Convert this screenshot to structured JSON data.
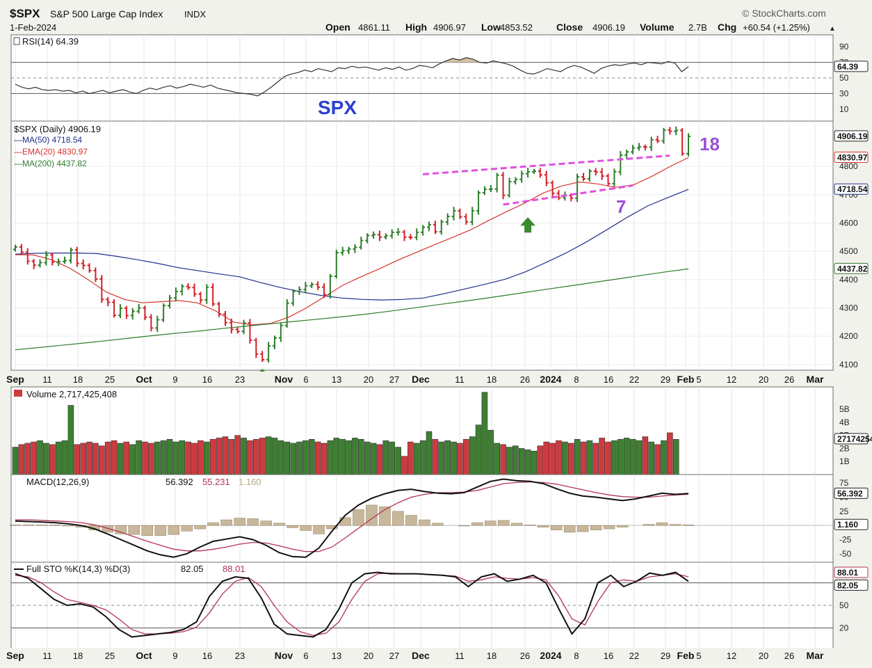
{
  "header": {
    "symbol": "$SPX",
    "name": "S&P 500 Large Cap Index",
    "exchange": "INDX",
    "brand": "StockCharts.com",
    "date": "1-Feb-2024",
    "quote_labels": [
      "Open",
      "High",
      "Low",
      "Close",
      "Volume",
      "Chg"
    ],
    "quote_values": [
      "4861.11",
      "4906.97",
      "4853.52",
      "4906.19",
      "2.7B",
      "+60.54 (+1.25%)"
    ],
    "up_arrow": "▲"
  },
  "colors": {
    "up": "#2f7d2c",
    "down": "#d42026",
    "ma50": "#1f2f8c",
    "ema20": "#d6332e",
    "ma200": "#2e7a2a",
    "annotation": "#e04fe0",
    "spx_label": "#2b3fd3",
    "count_label": "#9a4fd8",
    "arrow": "#3a8a2e",
    "hist": "#c8b79a",
    "rsi_fill": "#d2c1a4"
  },
  "annotations": {
    "spx": "SPX",
    "count_top": "18",
    "count_bottom": "7"
  },
  "chart_data": [
    {
      "panel": "rsi",
      "type": "line",
      "title": "RSI(14) 64.39",
      "current_value": "64.39",
      "ylim": [
        0,
        100
      ],
      "y_ticks": [
        "90",
        "70",
        "50",
        "30",
        "10"
      ],
      "reference_lines": [
        70,
        50,
        30
      ],
      "values": [
        42,
        38,
        36,
        38,
        35,
        34,
        35,
        33,
        34,
        31,
        33,
        30,
        32,
        34,
        31,
        33,
        35,
        32,
        30,
        34,
        37,
        35,
        38,
        40,
        37,
        39,
        42,
        40,
        38,
        41,
        37,
        35,
        33,
        31,
        30,
        29,
        27,
        32,
        38,
        45,
        52,
        55,
        57,
        60,
        58,
        62,
        60,
        58,
        63,
        62,
        65,
        63,
        64,
        62,
        60,
        63,
        61,
        64,
        60,
        62,
        66,
        65,
        63,
        68,
        72,
        75,
        73,
        76,
        74,
        70,
        69,
        72,
        70,
        68,
        65,
        60,
        56,
        55,
        58,
        62,
        60,
        58,
        63,
        66,
        64,
        60,
        56,
        62,
        65,
        67,
        66,
        68,
        69,
        67,
        70,
        69,
        68,
        71,
        69,
        58,
        64.39
      ]
    },
    {
      "panel": "price",
      "type": "candlestick",
      "title": "$SPX (Daily) 4906.19",
      "ylim": [
        4080,
        4960
      ],
      "y_ticks": [
        4100,
        4200,
        4300,
        4400,
        4500,
        4600,
        4700,
        4800
      ],
      "x_ticks": [
        "Sep",
        "11",
        "18",
        "25",
        "Oct",
        "9",
        "16",
        "23",
        "Nov",
        "6",
        "13",
        "20",
        "27",
        "Dec",
        "11",
        "18",
        "26",
        "2024",
        "8",
        "16",
        "22",
        "29",
        "Feb",
        "5",
        "12",
        "20",
        "26",
        "Mar"
      ],
      "closes": [
        4515,
        4497,
        4465,
        4451,
        4460,
        4487,
        4462,
        4464,
        4467,
        4505,
        4457,
        4450,
        4432,
        4402,
        4330,
        4320,
        4274,
        4299,
        4273,
        4288,
        4300,
        4267,
        4229,
        4258,
        4308,
        4335,
        4358,
        4376,
        4372,
        4349,
        4328,
        4373,
        4314,
        4278,
        4248,
        4224,
        4217,
        4247,
        4186,
        4137,
        4117,
        4166,
        4194,
        4238,
        4317,
        4358,
        4365,
        4378,
        4383,
        4373,
        4347,
        4412,
        4495,
        4502,
        4508,
        4514,
        4538,
        4556,
        4559,
        4550,
        4555,
        4567,
        4568,
        4550,
        4549,
        4567,
        4585,
        4594,
        4569,
        4604,
        4623,
        4643,
        4622,
        4604,
        4643,
        4707,
        4719,
        4720,
        4769,
        4698,
        4746,
        4754,
        4774,
        4781,
        4783,
        4770,
        4742,
        4705,
        4689,
        4697,
        4688,
        4763,
        4756,
        4783,
        4780,
        4766,
        4739,
        4781,
        4840,
        4851,
        4865,
        4869,
        4868,
        4894,
        4890,
        4928,
        4924,
        4927,
        4845,
        4906.19
      ],
      "series": [
        {
          "name": "MA(50)",
          "current": "4718.54",
          "values": [
            4490,
            4493,
            4494,
            4494,
            4492,
            4482,
            4470,
            4457,
            4442,
            4431,
            4420,
            4410,
            4390,
            4372,
            4357,
            4344,
            4335,
            4330,
            4328,
            4330,
            4335,
            4350,
            4366,
            4383,
            4401,
            4427,
            4460,
            4494,
            4533,
            4576,
            4620,
            4660,
            4690,
            4718.54
          ]
        },
        {
          "name": "EMA(20)",
          "current": "4830.97",
          "values": [
            4488,
            4487,
            4470,
            4440,
            4400,
            4356,
            4330,
            4318,
            4322,
            4326,
            4318,
            4290,
            4250,
            4240,
            4245,
            4266,
            4300,
            4340,
            4380,
            4410,
            4438,
            4468,
            4495,
            4522,
            4548,
            4575,
            4608,
            4640,
            4670,
            4705,
            4730,
            4745,
            4738,
            4726,
            4735,
            4765,
            4800,
            4830.97
          ]
        },
        {
          "name": "MA(200)",
          "current": "4437.82",
          "values": [
            4152,
            4160,
            4168,
            4176,
            4185,
            4194,
            4203,
            4211,
            4219,
            4228,
            4236,
            4244,
            4252,
            4260,
            4268,
            4277,
            4287,
            4298,
            4309,
            4320,
            4331,
            4343,
            4355,
            4367,
            4379,
            4391,
            4403,
            4415,
            4427,
            4437.82
          ]
        }
      ],
      "annotations": [
        {
          "type": "trendline",
          "from": [
            66,
            4772
          ],
          "to": [
            106,
            4838
          ]
        },
        {
          "type": "trendline",
          "from": [
            79,
            4665
          ],
          "to": [
            100,
            4732
          ]
        },
        {
          "type": "arrow-up",
          "x": 40,
          "y": 4090
        },
        {
          "type": "arrow-up",
          "x": 83,
          "y": 4625
        }
      ]
    },
    {
      "panel": "volume",
      "type": "bar",
      "title": "Volume 2,717,425,408",
      "current_value": "2717425408",
      "y_ticks": [
        "5B",
        "4B",
        "3B",
        "2B",
        "1B"
      ],
      "ylim": [
        0,
        6
      ],
      "values": [
        2.1,
        2.3,
        2.4,
        2.5,
        2.6,
        2.4,
        2.3,
        2.5,
        2.6,
        5.3,
        2.3,
        2.4,
        2.5,
        2.4,
        2.2,
        2.5,
        2.6,
        2.4,
        2.5,
        2.3,
        2.6,
        2.5,
        2.4,
        2.5,
        2.6,
        2.7,
        2.5,
        2.6,
        2.5,
        2.4,
        2.6,
        2.5,
        2.7,
        2.8,
        2.9,
        2.7,
        3.0,
        2.8,
        2.6,
        2.7,
        2.8,
        2.9,
        2.8,
        2.6,
        2.5,
        2.4,
        2.5,
        2.6,
        2.7,
        2.5,
        2.4,
        2.6,
        2.8,
        2.7,
        2.6,
        2.8,
        2.7,
        2.5,
        2.4,
        2.3,
        2.6,
        2.5,
        2.1,
        1.4,
        2.5,
        2.4,
        2.6,
        3.3,
        2.7,
        2.5,
        2.6,
        2.5,
        2.4,
        2.7,
        2.9,
        3.8,
        6.3,
        3.4,
        2.4,
        2.3,
        2.1,
        2.2,
        2.0,
        1.9,
        1.8,
        2.2,
        2.5,
        2.4,
        2.6,
        2.5,
        2.4,
        2.7,
        2.5,
        2.6,
        2.4,
        2.8,
        2.5,
        2.6,
        2.7,
        2.8,
        2.7,
        2.6,
        2.9,
        2.5,
        2.3,
        2.6,
        3.2,
        2.7
      ],
      "colors_by_bar": "up/down matches price candles"
    },
    {
      "panel": "macd",
      "type": "line",
      "title": "MACD(12,26,9)",
      "legend_values": [
        "56.392",
        "55.231",
        "1.160"
      ],
      "y_ticks": [
        "75",
        "50",
        "25",
        "0",
        "-25",
        "-50"
      ],
      "ylim": [
        -65,
        90
      ],
      "series": [
        {
          "name": "MACD",
          "values": [
            8,
            7,
            6,
            5,
            3,
            0,
            -6,
            -15,
            -25,
            -35,
            -45,
            -52,
            -56,
            -50,
            -38,
            -28,
            -24,
            -20,
            -25,
            -35,
            -48,
            -55,
            -56,
            -40,
            -10,
            18,
            36,
            48,
            56,
            62,
            64,
            60,
            57,
            56,
            58,
            68,
            78,
            82,
            79,
            78,
            74,
            65,
            57,
            52,
            50,
            47,
            44,
            47,
            52,
            57,
            55,
            56.392
          ]
        },
        {
          "name": "Signal",
          "values": [
            10,
            10,
            9,
            8,
            7,
            5,
            1,
            -5,
            -12,
            -20,
            -28,
            -35,
            -42,
            -45,
            -45,
            -42,
            -38,
            -33,
            -30,
            -31,
            -36,
            -42,
            -46,
            -46,
            -38,
            -22,
            -5,
            12,
            28,
            40,
            50,
            55,
            58,
            58,
            59,
            62,
            68,
            74,
            76,
            77,
            76,
            73,
            68,
            63,
            58,
            54,
            51,
            50,
            50,
            52,
            54,
            55.231
          ]
        },
        {
          "name": "Histogram",
          "values": [
            1,
            1,
            1,
            1,
            -1,
            -3,
            -8,
            -12,
            -15,
            -16,
            -18,
            -18,
            -16,
            -10,
            -6,
            5,
            10,
            13,
            12,
            8,
            4,
            -4,
            -9,
            -15,
            -6,
            14,
            28,
            36,
            33,
            25,
            18,
            10,
            4,
            0,
            -1,
            5,
            8,
            9,
            4,
            1,
            -3,
            -8,
            -12,
            -11,
            -8,
            -6,
            -3,
            0,
            2,
            5,
            2,
            1.16
          ]
        }
      ]
    },
    {
      "panel": "stochastic",
      "type": "line",
      "title": "Full STO %K(14,3) %D(3)",
      "legend_values": [
        "82.05",
        "88.01"
      ],
      "y_ticks": [
        "80",
        "50",
        "20"
      ],
      "ylim": [
        0,
        100
      ],
      "reference_lines": [
        80,
        50,
        20
      ],
      "series": [
        {
          "name": "%K",
          "values": [
            92,
            86,
            72,
            58,
            50,
            52,
            48,
            35,
            18,
            8,
            10,
            12,
            14,
            18,
            28,
            62,
            82,
            88,
            86,
            60,
            25,
            12,
            10,
            8,
            18,
            45,
            80,
            92,
            94,
            92,
            92,
            92,
            91,
            90,
            88,
            75,
            88,
            92,
            82,
            85,
            90,
            80,
            45,
            12,
            32,
            80,
            90,
            75,
            82,
            93,
            90,
            94,
            82.05
          ]
        },
        {
          "name": "%D",
          "values": [
            90,
            88,
            80,
            68,
            58,
            54,
            50,
            44,
            32,
            18,
            12,
            12,
            13,
            15,
            21,
            40,
            65,
            82,
            87,
            75,
            50,
            28,
            15,
            10,
            13,
            28,
            58,
            82,
            92,
            93,
            92,
            92,
            91,
            90,
            89,
            82,
            84,
            88,
            86,
            85,
            87,
            84,
            62,
            32,
            24,
            55,
            80,
            84,
            82,
            88,
            90,
            92,
            88.01
          ]
        }
      ]
    }
  ]
}
